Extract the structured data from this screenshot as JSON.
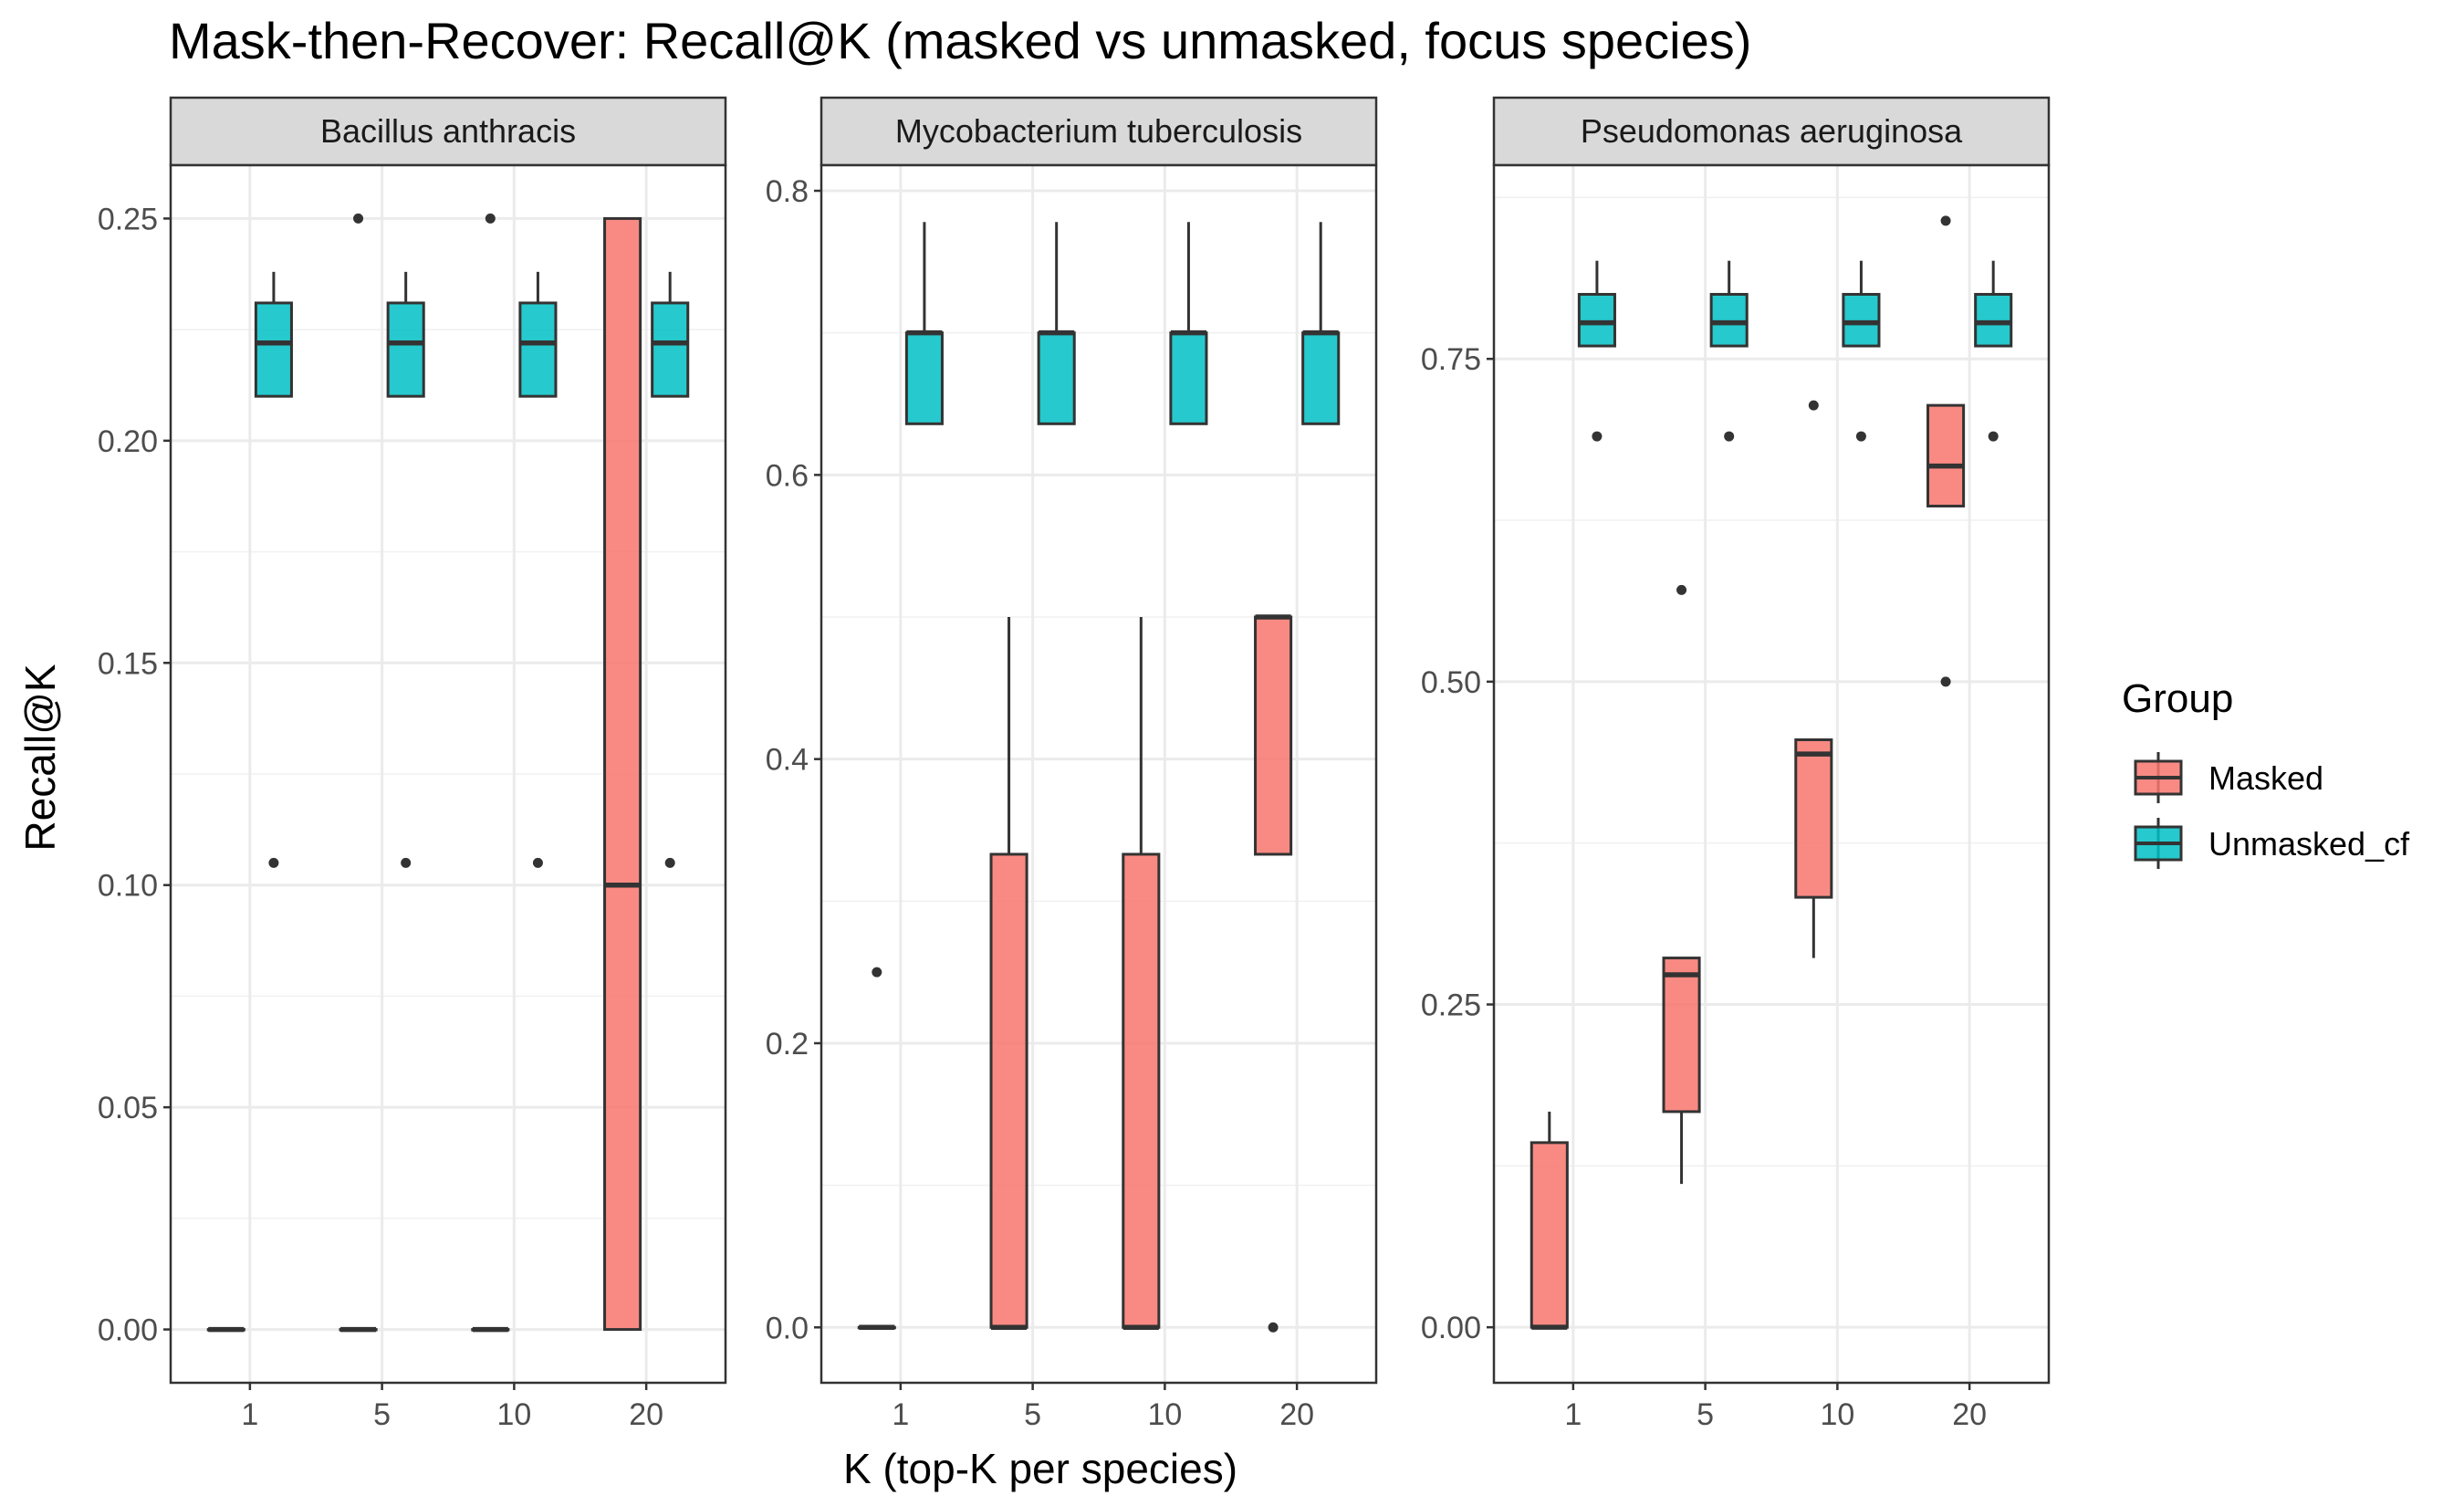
{
  "chart_data": {
    "type": "box",
    "title": "Mask-then-Recover: Recall@K (masked vs unmasked, focus species)",
    "xlabel": "K (top-K per species)",
    "ylabel": "Recall@K",
    "categories": [
      "1",
      "5",
      "10",
      "20"
    ],
    "legend": {
      "title": "Group",
      "placement": "right",
      "entries": [
        {
          "name": "Masked",
          "color": "#F8766D"
        },
        {
          "name": "Unmasked_cf",
          "color": "#00BFC4"
        }
      ]
    },
    "grid": true,
    "panels": [
      {
        "name": "Bacillus anthracis",
        "ylim": [
          -0.012,
          0.262
        ],
        "yticks": [
          0.0,
          0.05,
          0.1,
          0.15,
          0.2,
          0.25
        ],
        "ytick_labels": [
          "0.00",
          "0.05",
          "0.10",
          "0.15",
          "0.20",
          "0.25"
        ],
        "series": [
          {
            "name": "Masked",
            "boxes": [
              {
                "k": "1",
                "min": 0.0,
                "q1": 0.0,
                "median": 0.0,
                "q3": 0.0,
                "max": 0.0,
                "outliers": []
              },
              {
                "k": "5",
                "min": 0.0,
                "q1": 0.0,
                "median": 0.0,
                "q3": 0.0,
                "max": 0.0,
                "outliers": []
              },
              {
                "k": "10",
                "min": 0.0,
                "q1": 0.0,
                "median": 0.0,
                "q3": 0.0,
                "max": 0.0,
                "outliers": []
              },
              {
                "k": "20",
                "min": 0.0,
                "q1": 0.0,
                "median": 0.1,
                "q3": 0.25,
                "max": 0.25,
                "outliers": []
              }
            ]
          },
          {
            "name": "Unmasked_cf",
            "boxes": [
              {
                "k": "1",
                "min": 0.21,
                "q1": 0.21,
                "median": 0.222,
                "q3": 0.231,
                "max": 0.238,
                "outliers": [
                  0.105
                ]
              },
              {
                "k": "5",
                "min": 0.21,
                "q1": 0.21,
                "median": 0.222,
                "q3": 0.231,
                "max": 0.238,
                "outliers": [
                  0.105
                ]
              },
              {
                "k": "10",
                "min": 0.21,
                "q1": 0.21,
                "median": 0.222,
                "q3": 0.231,
                "max": 0.238,
                "outliers": [
                  0.105
                ]
              },
              {
                "k": "20",
                "min": 0.21,
                "q1": 0.21,
                "median": 0.222,
                "q3": 0.231,
                "max": 0.238,
                "outliers": [
                  0.105
                ]
              }
            ]
          }
        ],
        "extra_points": [
          {
            "k": "5",
            "group": "Masked",
            "value": 0.25
          },
          {
            "k": "10",
            "group": "Masked",
            "value": 0.25
          }
        ]
      },
      {
        "name": "Mycobacterium tuberculosis",
        "ylim": [
          -0.039,
          0.818
        ],
        "yticks": [
          0.0,
          0.2,
          0.4,
          0.6,
          0.8
        ],
        "ytick_labels": [
          "0.0",
          "0.2",
          "0.4",
          "0.6",
          "0.8"
        ],
        "series": [
          {
            "name": "Masked",
            "boxes": [
              {
                "k": "1",
                "min": 0.0,
                "q1": 0.0,
                "median": 0.0,
                "q3": 0.0,
                "max": 0.0,
                "outliers": [
                  0.25
                ]
              },
              {
                "k": "5",
                "min": 0.0,
                "q1": 0.0,
                "median": 0.0,
                "q3": 0.333,
                "max": 0.5,
                "outliers": []
              },
              {
                "k": "10",
                "min": 0.0,
                "q1": 0.0,
                "median": 0.0,
                "q3": 0.333,
                "max": 0.5,
                "outliers": []
              },
              {
                "k": "20",
                "min": 0.333,
                "q1": 0.333,
                "median": 0.5,
                "q3": 0.5,
                "max": 0.5,
                "outliers": [
                  0.0
                ]
              }
            ]
          },
          {
            "name": "Unmasked_cf",
            "boxes": [
              {
                "k": "1",
                "min": 0.636,
                "q1": 0.636,
                "median": 0.7,
                "q3": 0.7,
                "max": 0.778,
                "outliers": []
              },
              {
                "k": "5",
                "min": 0.636,
                "q1": 0.636,
                "median": 0.7,
                "q3": 0.7,
                "max": 0.778,
                "outliers": []
              },
              {
                "k": "10",
                "min": 0.636,
                "q1": 0.636,
                "median": 0.7,
                "q3": 0.7,
                "max": 0.778,
                "outliers": []
              },
              {
                "k": "20",
                "min": 0.636,
                "q1": 0.636,
                "median": 0.7,
                "q3": 0.7,
                "max": 0.778,
                "outliers": []
              }
            ]
          }
        ],
        "extra_points": []
      },
      {
        "name": "Pseudomonas aeruginosa",
        "ylim": [
          -0.043,
          0.9
        ],
        "yticks": [
          0.0,
          0.25,
          0.5,
          0.75
        ],
        "ytick_labels": [
          "0.00",
          "0.25",
          "0.50",
          "0.75"
        ],
        "series": [
          {
            "name": "Masked",
            "boxes": [
              {
                "k": "1",
                "min": 0.0,
                "q1": 0.0,
                "median": 0.0,
                "q3": 0.143,
                "max": 0.167,
                "outliers": []
              },
              {
                "k": "5",
                "min": 0.111,
                "q1": 0.167,
                "median": 0.273,
                "q3": 0.286,
                "max": 0.286,
                "outliers": [
                  0.571
                ]
              },
              {
                "k": "10",
                "min": 0.286,
                "q1": 0.333,
                "median": 0.444,
                "q3": 0.455,
                "max": 0.455,
                "outliers": [
                  0.714
                ]
              },
              {
                "k": "20",
                "min": 0.636,
                "q1": 0.636,
                "median": 0.667,
                "q3": 0.714,
                "max": 0.714,
                "outliers": [
                  0.857,
                  0.5
                ]
              }
            ]
          },
          {
            "name": "Unmasked_cf",
            "boxes": [
              {
                "k": "1",
                "min": 0.76,
                "q1": 0.76,
                "median": 0.778,
                "q3": 0.8,
                "max": 0.826,
                "outliers": [
                  0.69
                ]
              },
              {
                "k": "5",
                "min": 0.76,
                "q1": 0.76,
                "median": 0.778,
                "q3": 0.8,
                "max": 0.826,
                "outliers": [
                  0.69
                ]
              },
              {
                "k": "10",
                "min": 0.76,
                "q1": 0.76,
                "median": 0.778,
                "q3": 0.8,
                "max": 0.826,
                "outliers": [
                  0.69
                ]
              },
              {
                "k": "20",
                "min": 0.76,
                "q1": 0.76,
                "median": 0.778,
                "q3": 0.8,
                "max": 0.826,
                "outliers": [
                  0.69
                ]
              }
            ]
          }
        ],
        "extra_points": []
      }
    ]
  }
}
